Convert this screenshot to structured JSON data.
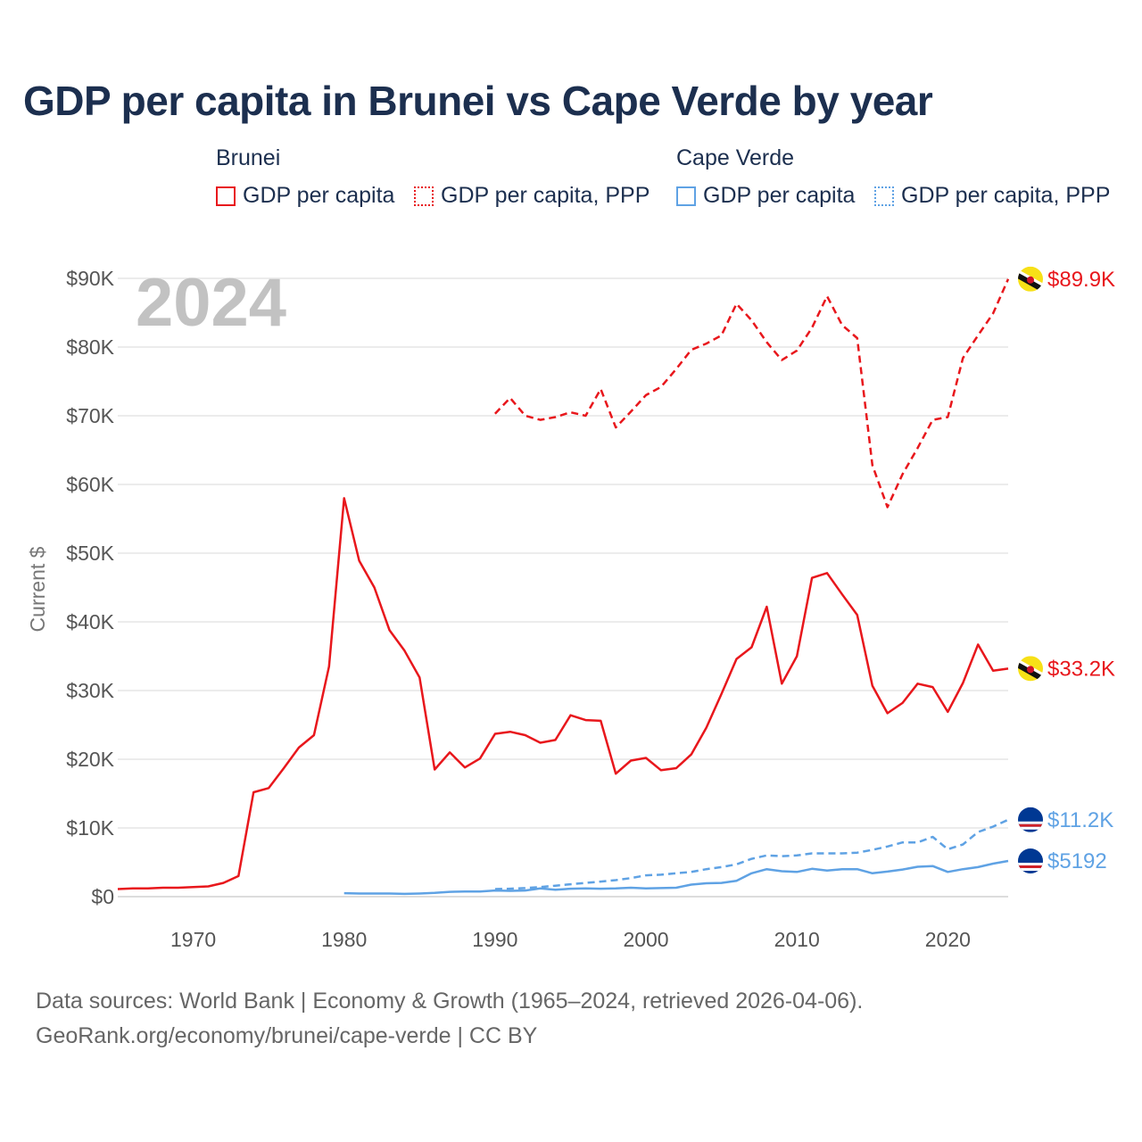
{
  "title": "GDP per capita in Brunei vs Cape Verde by year",
  "year_watermark": "2024",
  "legend": {
    "groups": [
      {
        "name": "Brunei",
        "color": "#e8171c",
        "items": [
          {
            "label": "GDP per capita",
            "style": "solid"
          },
          {
            "label": "GDP per capita, PPP",
            "style": "dotted"
          }
        ]
      },
      {
        "name": "Cape Verde",
        "color": "#5fa2e4",
        "items": [
          {
            "label": "GDP per capita",
            "style": "solid"
          },
          {
            "label": "GDP per capita, PPP",
            "style": "dotted"
          }
        ]
      }
    ]
  },
  "source_lines": [
    "Data sources: World Bank | Economy & Growth (1965–2024, retrieved 2026-04-06).",
    "GeoRank.org/economy/brunei/cape-verde | CC BY"
  ],
  "chart_data": {
    "type": "line",
    "title": "GDP per capita in Brunei vs Cape Verde by year",
    "xlabel": "",
    "ylabel": "Current $",
    "xlim": [
      1965,
      2024
    ],
    "ylim": [
      0,
      90000
    ],
    "x_ticks": [
      1970,
      1980,
      1990,
      2000,
      2010,
      2020
    ],
    "y_ticks": [
      {
        "value": 0,
        "label": "$0"
      },
      {
        "value": 10000,
        "label": "$10K"
      },
      {
        "value": 20000,
        "label": "$20K"
      },
      {
        "value": 30000,
        "label": "$30K"
      },
      {
        "value": 40000,
        "label": "$40K"
      },
      {
        "value": 50000,
        "label": "$50K"
      },
      {
        "value": 60000,
        "label": "$60K"
      },
      {
        "value": 70000,
        "label": "$70K"
      },
      {
        "value": 80000,
        "label": "$80K"
      },
      {
        "value": 90000,
        "label": "$90K"
      }
    ],
    "grid": true,
    "series": [
      {
        "name": "Brunei GDP per capita",
        "country": "Brunei",
        "color": "#e8171c",
        "dash": "solid",
        "end_label": "$33.2K",
        "x": [
          1965,
          1966,
          1967,
          1968,
          1969,
          1970,
          1971,
          1972,
          1973,
          1974,
          1975,
          1976,
          1977,
          1978,
          1979,
          1980,
          1981,
          1982,
          1983,
          1984,
          1985,
          1986,
          1987,
          1988,
          1989,
          1990,
          1991,
          1992,
          1993,
          1994,
          1995,
          1996,
          1997,
          1998,
          1999,
          2000,
          2001,
          2002,
          2003,
          2004,
          2005,
          2006,
          2007,
          2008,
          2009,
          2010,
          2011,
          2012,
          2013,
          2014,
          2015,
          2016,
          2017,
          2018,
          2019,
          2020,
          2021,
          2022,
          2023,
          2024
        ],
        "values": [
          1100,
          1200,
          1200,
          1300,
          1300,
          1400,
          1500,
          2000,
          3000,
          15200,
          15800,
          18700,
          21700,
          23500,
          33500,
          58000,
          48900,
          45000,
          38800,
          35800,
          31900,
          18500,
          21000,
          18800,
          20100,
          23700,
          24000,
          23500,
          22400,
          22800,
          26400,
          25700,
          25600,
          17900,
          19800,
          20200,
          18400,
          18700,
          20700,
          24600,
          29500,
          34600,
          36300,
          42200,
          31000,
          35000,
          46400,
          47100,
          44000,
          41000,
          30700,
          26700,
          28200,
          31000,
          30500,
          26900,
          31100,
          36700,
          32900,
          33200
        ]
      },
      {
        "name": "Brunei GDP per capita, PPP",
        "country": "Brunei",
        "color": "#e8171c",
        "dash": "dashed",
        "end_label": "$89.9K",
        "x": [
          1990,
          1991,
          1992,
          1993,
          1994,
          1995,
          1996,
          1997,
          1998,
          1999,
          2000,
          2001,
          2002,
          2003,
          2004,
          2005,
          2006,
          2007,
          2008,
          2009,
          2010,
          2011,
          2012,
          2013,
          2014,
          2015,
          2016,
          2017,
          2018,
          2019,
          2020,
          2021,
          2022,
          2023,
          2024
        ],
        "values": [
          70300,
          72600,
          70000,
          69400,
          69800,
          70500,
          70000,
          73900,
          68300,
          70600,
          73000,
          74200,
          76800,
          79600,
          80500,
          81700,
          86300,
          83900,
          80700,
          78100,
          79500,
          82800,
          87400,
          83200,
          81300,
          62800,
          56700,
          61500,
          65300,
          69400,
          69800,
          78400,
          81700,
          84900,
          89900
        ]
      },
      {
        "name": "Cape Verde GDP per capita",
        "country": "Cape Verde",
        "color": "#5fa2e4",
        "dash": "solid",
        "end_label": "$5192",
        "x": [
          1980,
          1981,
          1982,
          1983,
          1984,
          1985,
          1986,
          1987,
          1988,
          1989,
          1990,
          1991,
          1992,
          1993,
          1994,
          1995,
          1996,
          1997,
          1998,
          1999,
          2000,
          2001,
          2002,
          2003,
          2004,
          2005,
          2006,
          2007,
          2008,
          2009,
          2010,
          2011,
          2012,
          2013,
          2014,
          2015,
          2016,
          2017,
          2018,
          2019,
          2020,
          2021,
          2022,
          2023,
          2024
        ],
        "values": [
          500,
          450,
          450,
          450,
          400,
          450,
          550,
          700,
          750,
          750,
          900,
          850,
          900,
          1200,
          1000,
          1150,
          1200,
          1150,
          1200,
          1300,
          1200,
          1250,
          1300,
          1750,
          1950,
          2000,
          2300,
          3400,
          4000,
          3700,
          3600,
          4050,
          3800,
          4000,
          4000,
          3400,
          3650,
          3950,
          4350,
          4450,
          3600,
          4000,
          4300,
          4800,
          5192
        ]
      },
      {
        "name": "Cape Verde GDP per capita, PPP",
        "country": "Cape Verde",
        "color": "#5fa2e4",
        "dash": "dashed",
        "end_label": "$11.2K",
        "x": [
          1990,
          1991,
          1992,
          1993,
          1994,
          1995,
          1996,
          1997,
          1998,
          1999,
          2000,
          2001,
          2002,
          2003,
          2004,
          2005,
          2006,
          2007,
          2008,
          2009,
          2010,
          2011,
          2012,
          2013,
          2014,
          2015,
          2016,
          2017,
          2018,
          2019,
          2020,
          2021,
          2022,
          2023,
          2024
        ],
        "values": [
          1100,
          1150,
          1250,
          1400,
          1600,
          1800,
          2000,
          2200,
          2400,
          2700,
          3100,
          3200,
          3400,
          3600,
          4000,
          4300,
          4700,
          5500,
          6000,
          5900,
          6000,
          6300,
          6300,
          6300,
          6400,
          6800,
          7300,
          7900,
          7900,
          8700,
          6900,
          7600,
          9400,
          10200,
          11200
        ]
      }
    ]
  }
}
